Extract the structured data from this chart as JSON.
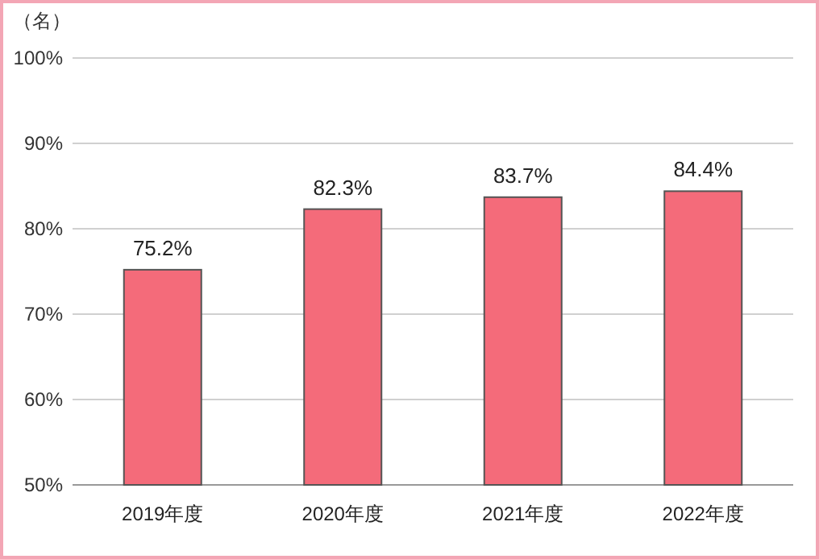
{
  "chart_data": {
    "type": "bar",
    "ylabel": "（名）",
    "categories": [
      "2019年度",
      "2020年度",
      "2021年度",
      "2022年度"
    ],
    "values": [
      75.2,
      82.3,
      83.7,
      84.4
    ],
    "value_labels": [
      "75.2%",
      "82.3%",
      "83.7%",
      "84.4%"
    ],
    "color": "#f46b7a",
    "ylim": [
      50,
      100
    ],
    "yticks": [
      {
        "value": 50,
        "label": "50%"
      },
      {
        "value": 60,
        "label": "60%"
      },
      {
        "value": 70,
        "label": "70%"
      },
      {
        "value": 80,
        "label": "80%"
      },
      {
        "value": 90,
        "label": "90%"
      },
      {
        "value": 100,
        "label": "100%"
      }
    ],
    "grid": "y"
  }
}
